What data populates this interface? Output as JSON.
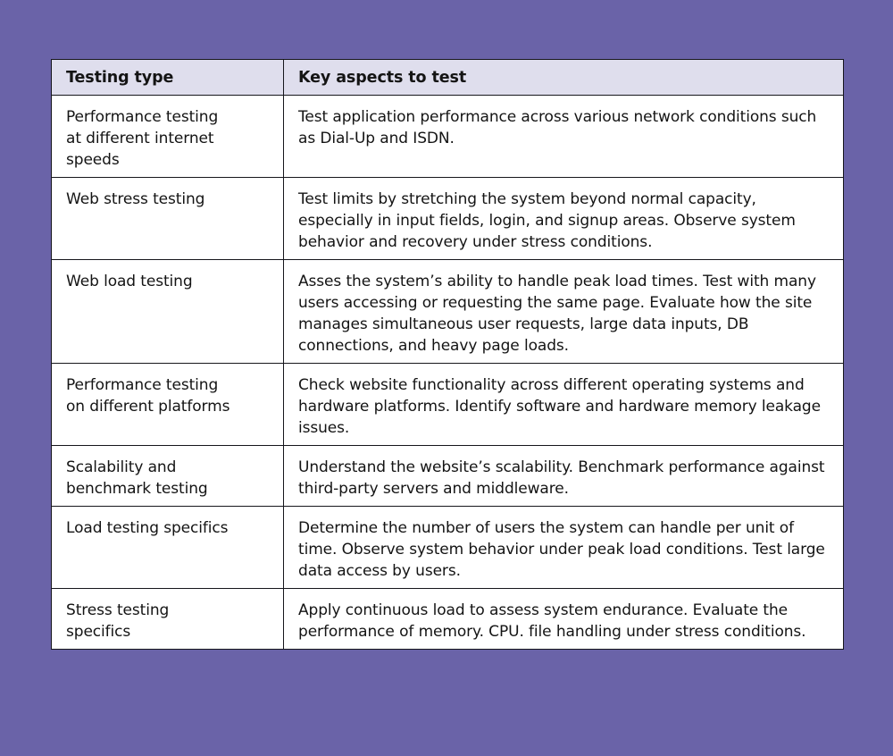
{
  "page": {
    "background_color": "#6a63a8"
  },
  "table": {
    "colors": {
      "page_bg": "#6a63a8",
      "header_bg": "#dfdeed",
      "cell_bg": "#ffffff",
      "border": "#16161c",
      "text": "#141414"
    },
    "columns": [
      "Testing type",
      "Key aspects to test"
    ],
    "rows": [
      {
        "type": "Performance testing at different internet speeds",
        "aspects": "Test application performance across various network conditions such as Dial-Up and ISDN."
      },
      {
        "type": "Web stress testing",
        "aspects": "Test limits by stretching the system beyond normal capacity, especially in input fields, login, and signup areas. Observe system behavior and recovery under stress conditions."
      },
      {
        "type": "Web load testing",
        "aspects": "Asses the system’s ability to handle peak load times. Test with many users accessing or requesting the same page. Evaluate how the site manages simultaneous user requests, large data inputs, DB connections, and heavy page loads."
      },
      {
        "type": "Performance testing on different platforms",
        "aspects": "Check website functionality across different operating systems and hardware platforms. Identify software and hardware memory leakage issues."
      },
      {
        "type": "Scalability and benchmark testing",
        "aspects": "Understand the website’s scalability. Benchmark performance against third-party servers and middleware."
      },
      {
        "type": "Load testing specifics",
        "aspects": "Determine the number of users the system can handle per unit of time. Observe system behavior under peak load conditions. Test large data access by users."
      },
      {
        "type": "Stress testing specifics",
        "aspects": "Apply continuous load to assess system endurance. Evaluate the performance of memory. CPU. file handling under stress conditions."
      }
    ]
  }
}
